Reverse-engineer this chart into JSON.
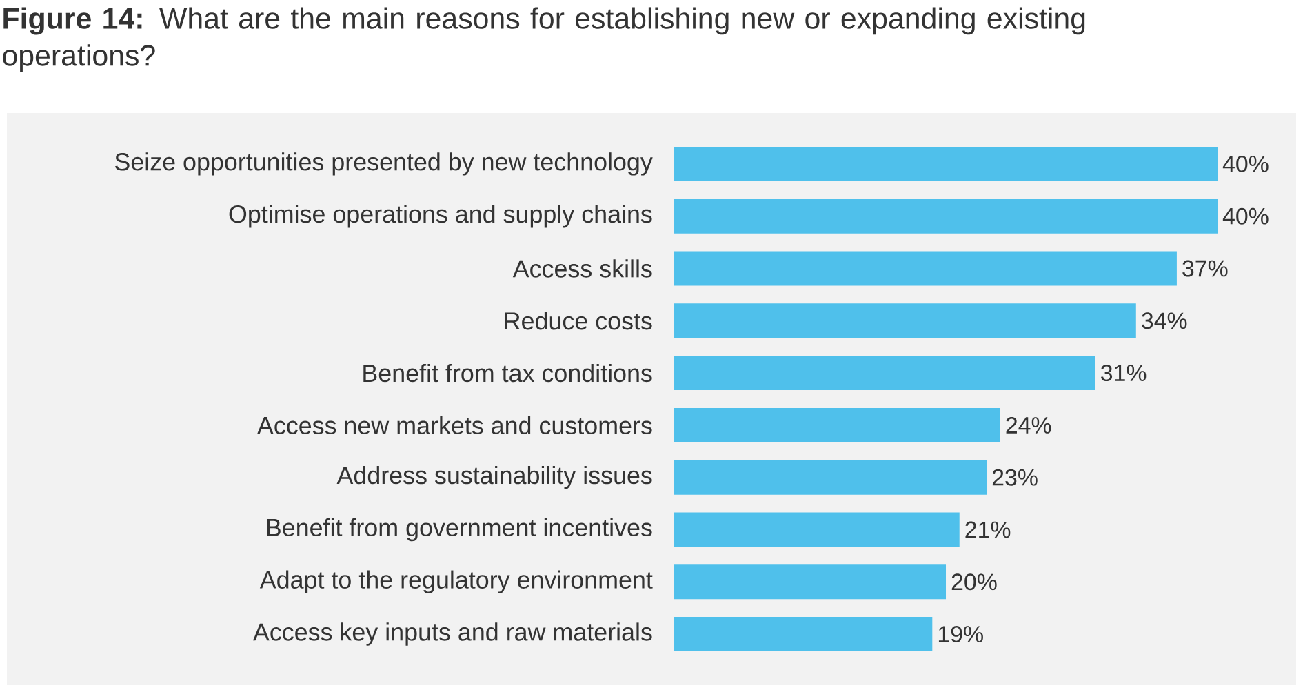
{
  "chart_data": {
    "type": "bar",
    "orientation": "horizontal",
    "title": "**Figure 14:** What are the main reasons for establishing new or expanding existing operations?",
    "categories": [
      "Seize opportunities presented by new technology",
      "Optimise operations and supply chains",
      "Access skills",
      "Reduce costs",
      "Benefit from tax conditions",
      "Access new markets and customers",
      "Address sustainability issues",
      "Benefit from government incentives",
      "Adapt to the regulatory environment",
      "Access key inputs and raw materials"
    ],
    "values": [
      40,
      40,
      37,
      34,
      31,
      24,
      23,
      21,
      20,
      19
    ],
    "value_labels": [
      "40%",
      "40%",
      "37%",
      "34%",
      "31%",
      "24%",
      "23%",
      "21%",
      "20%",
      "19%"
    ],
    "color": "#4fc0eb"
  }
}
